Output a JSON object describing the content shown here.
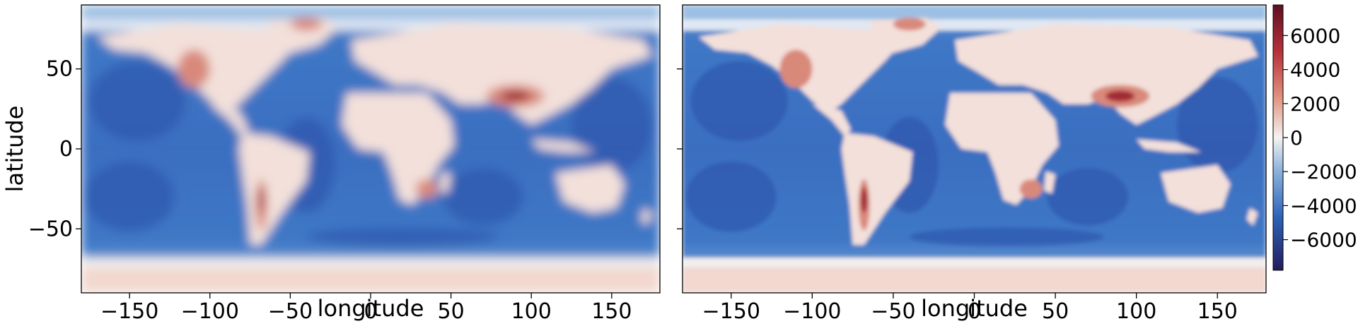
{
  "chart_data": [
    {
      "type": "heatmap",
      "xlabel": "longitude",
      "ylabel": "latitude",
      "xlim": [
        -180,
        180
      ],
      "ylim": [
        -90,
        90
      ],
      "xticks": [
        -150,
        -100,
        -50,
        0,
        50,
        100,
        150
      ],
      "xtick_labels": [
        "−150",
        "−100",
        "−50",
        "0",
        "50",
        "100",
        "150"
      ],
      "yticks": [
        50,
        0,
        -50
      ],
      "ytick_labels": [
        "50",
        "0",
        "−50"
      ],
      "colormap": "diverging blue-white-red (twilight_shifted-like)",
      "resolution": "low (smoothed)"
    },
    {
      "type": "heatmap",
      "xlabel": "longitude",
      "ylabel": "",
      "xlim": [
        -180,
        180
      ],
      "ylim": [
        -90,
        90
      ],
      "xticks": [
        -150,
        -100,
        -50,
        0,
        50,
        100,
        150
      ],
      "xtick_labels": [
        "−150",
        "−100",
        "−50",
        "0",
        "50",
        "100",
        "150"
      ],
      "yticks": [
        50,
        0,
        -50
      ],
      "ytick_labels": [
        "",
        "",
        ""
      ],
      "colormap": "diverging blue-white-red (twilight_shifted-like)",
      "resolution": "high"
    }
  ],
  "colorbar": {
    "vmin": -7800,
    "vmax": 7800,
    "ticks": [
      6000,
      4000,
      2000,
      0,
      -2000,
      -4000,
      -6000
    ],
    "tick_labels": [
      "6000",
      "4000",
      "2000",
      "0",
      "−2000",
      "−4000",
      "−6000"
    ],
    "colors": [
      "#2a1a5e",
      "#1d4fb0",
      "#4f8cd2",
      "#f4f2f1",
      "#e19c87",
      "#c2453a",
      "#6b0f25"
    ]
  }
}
